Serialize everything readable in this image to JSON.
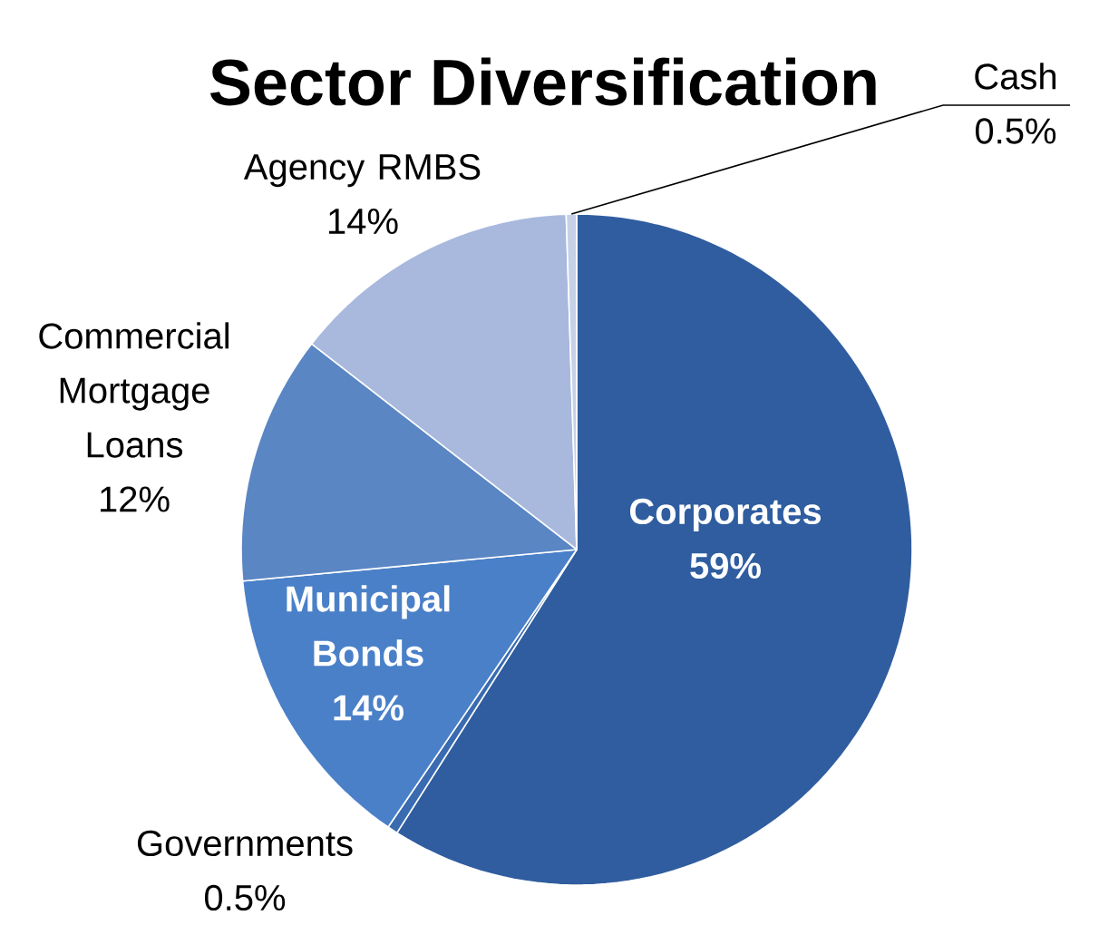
{
  "chart_data": {
    "type": "pie",
    "title": "Sector Diversification",
    "categories": [
      "Corporates",
      "Governments",
      "Municipal Bonds",
      "Commercial Mortgage Loans",
      "Agency RMBS",
      "Cash"
    ],
    "values": [
      59,
      0.5,
      14,
      12,
      14,
      0.5
    ],
    "value_labels": [
      "59%",
      "0.5%",
      "14%",
      "12%",
      "14%",
      "0.5%"
    ],
    "colors": [
      "#2f5d9f",
      "#3a6bb0",
      "#4a80c8",
      "#5a86c4",
      "#a8b9dd",
      "#c6d1e8"
    ]
  }
}
